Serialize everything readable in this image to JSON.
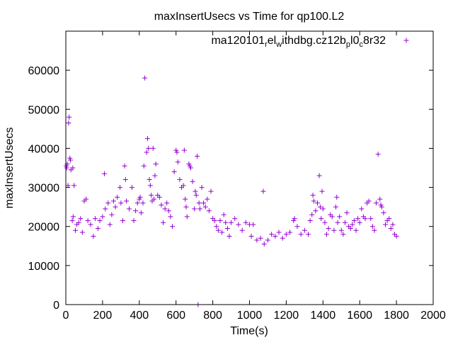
{
  "chart_data": {
    "type": "scatter",
    "title": "maxInsertUsecs vs Time for qp100.L2",
    "xlabel": "Time(s)",
    "ylabel": "maxInsertUsecs",
    "xlim": [
      0,
      2000
    ],
    "ylim": [
      0,
      70000
    ],
    "x_ticks": [
      "0",
      "200",
      "400",
      "600",
      "800",
      "1000",
      "1200",
      "1400",
      "1600",
      "1800",
      "2000"
    ],
    "y_ticks": [
      "0",
      "10000",
      "20000",
      "30000",
      "40000",
      "50000",
      "60000"
    ],
    "legend": {
      "position": "top-right",
      "marker": "+",
      "color": "#9400d3"
    },
    "series": [
      {
        "label_parts": [
          {
            "text": "ma120101",
            "sub": false
          },
          {
            "text": "r",
            "sub": true
          },
          {
            "text": "el",
            "sub": false
          },
          {
            "text": "w",
            "sub": true
          },
          {
            "text": "ithdbg.cz12b",
            "sub": false
          },
          {
            "text": "p",
            "sub": true
          },
          {
            "text": "l0",
            "sub": false
          },
          {
            "text": "c",
            "sub": true
          },
          {
            "text": "8r32",
            "sub": false
          }
        ],
        "color": "#9400d3",
        "marker": "+",
        "points": [
          [
            2,
            35500
          ],
          [
            5,
            35000
          ],
          [
            8,
            36000
          ],
          [
            12,
            30500
          ],
          [
            15,
            46500
          ],
          [
            18,
            48000
          ],
          [
            22,
            37500
          ],
          [
            25,
            37000
          ],
          [
            28,
            34500
          ],
          [
            35,
            21500
          ],
          [
            38,
            35000
          ],
          [
            40,
            22500
          ],
          [
            45,
            30500
          ],
          [
            52,
            19000
          ],
          [
            60,
            20500
          ],
          [
            70,
            21000
          ],
          [
            80,
            22000
          ],
          [
            90,
            18500
          ],
          [
            100,
            26500
          ],
          [
            110,
            27000
          ],
          [
            120,
            21500
          ],
          [
            135,
            20500
          ],
          [
            150,
            17500
          ],
          [
            160,
            22000
          ],
          [
            175,
            19500
          ],
          [
            185,
            21500
          ],
          [
            200,
            22500
          ],
          [
            210,
            33500
          ],
          [
            215,
            24500
          ],
          [
            230,
            26000
          ],
          [
            240,
            20500
          ],
          [
            250,
            23000
          ],
          [
            260,
            26500
          ],
          [
            270,
            25000
          ],
          [
            280,
            27500
          ],
          [
            295,
            30000
          ],
          [
            300,
            26000
          ],
          [
            310,
            21500
          ],
          [
            320,
            35500
          ],
          [
            325,
            32000
          ],
          [
            330,
            26500
          ],
          [
            345,
            24500
          ],
          [
            360,
            30000
          ],
          [
            370,
            21500
          ],
          [
            380,
            24000
          ],
          [
            390,
            26000
          ],
          [
            400,
            27000
          ],
          [
            405,
            27500
          ],
          [
            410,
            23500
          ],
          [
            420,
            26000
          ],
          [
            425,
            35500
          ],
          [
            430,
            58000
          ],
          [
            440,
            39000
          ],
          [
            445,
            42500
          ],
          [
            450,
            40000
          ],
          [
            455,
            32000
          ],
          [
            460,
            30500
          ],
          [
            465,
            28000
          ],
          [
            470,
            26500
          ],
          [
            475,
            40000
          ],
          [
            480,
            27000
          ],
          [
            485,
            33000
          ],
          [
            490,
            36000
          ],
          [
            500,
            28000
          ],
          [
            510,
            27500
          ],
          [
            520,
            25500
          ],
          [
            530,
            21000
          ],
          [
            540,
            24500
          ],
          [
            550,
            26000
          ],
          [
            560,
            24000
          ],
          [
            570,
            22500
          ],
          [
            580,
            20000
          ],
          [
            590,
            34000
          ],
          [
            600,
            39500
          ],
          [
            605,
            39000
          ],
          [
            610,
            36500
          ],
          [
            620,
            32000
          ],
          [
            630,
            30000
          ],
          [
            640,
            30500
          ],
          [
            645,
            39500
          ],
          [
            650,
            27000
          ],
          [
            655,
            25000
          ],
          [
            660,
            22500
          ],
          [
            670,
            36000
          ],
          [
            675,
            35500
          ],
          [
            680,
            35000
          ],
          [
            690,
            31500
          ],
          [
            700,
            24500
          ],
          [
            705,
            29000
          ],
          [
            710,
            28000
          ],
          [
            715,
            38000
          ],
          [
            720,
            0
          ],
          [
            725,
            26000
          ],
          [
            730,
            24500
          ],
          [
            740,
            30000
          ],
          [
            750,
            26000
          ],
          [
            760,
            25000
          ],
          [
            770,
            27000
          ],
          [
            780,
            24000
          ],
          [
            790,
            29000
          ],
          [
            800,
            22000
          ],
          [
            810,
            21500
          ],
          [
            820,
            20000
          ],
          [
            830,
            19000
          ],
          [
            840,
            21500
          ],
          [
            850,
            18500
          ],
          [
            860,
            23000
          ],
          [
            870,
            21000
          ],
          [
            880,
            19500
          ],
          [
            890,
            17500
          ],
          [
            900,
            21000
          ],
          [
            920,
            22000
          ],
          [
            940,
            20500
          ],
          [
            960,
            19000
          ],
          [
            980,
            21000
          ],
          [
            1000,
            20500
          ],
          [
            1010,
            17500
          ],
          [
            1020,
            20500
          ],
          [
            1040,
            16500
          ],
          [
            1060,
            17000
          ],
          [
            1075,
            29000
          ],
          [
            1080,
            15500
          ],
          [
            1100,
            16500
          ],
          [
            1120,
            18000
          ],
          [
            1140,
            17500
          ],
          [
            1160,
            18500
          ],
          [
            1180,
            17000
          ],
          [
            1200,
            18000
          ],
          [
            1220,
            18500
          ],
          [
            1240,
            21500
          ],
          [
            1245,
            22000
          ],
          [
            1260,
            20000
          ],
          [
            1280,
            18000
          ],
          [
            1300,
            19000
          ],
          [
            1320,
            18000
          ],
          [
            1330,
            21500
          ],
          [
            1340,
            23000
          ],
          [
            1345,
            28000
          ],
          [
            1350,
            26500
          ],
          [
            1360,
            24000
          ],
          [
            1370,
            26000
          ],
          [
            1380,
            33000
          ],
          [
            1385,
            25000
          ],
          [
            1390,
            22000
          ],
          [
            1395,
            29000
          ],
          [
            1400,
            24500
          ],
          [
            1410,
            21000
          ],
          [
            1420,
            18000
          ],
          [
            1430,
            19500
          ],
          [
            1440,
            23000
          ],
          [
            1450,
            22500
          ],
          [
            1460,
            19000
          ],
          [
            1470,
            25000
          ],
          [
            1475,
            27500
          ],
          [
            1480,
            21000
          ],
          [
            1490,
            22500
          ],
          [
            1500,
            19000
          ],
          [
            1510,
            18000
          ],
          [
            1520,
            21000
          ],
          [
            1530,
            23500
          ],
          [
            1540,
            20000
          ],
          [
            1550,
            19500
          ],
          [
            1560,
            20500
          ],
          [
            1570,
            21500
          ],
          [
            1580,
            19000
          ],
          [
            1590,
            22000
          ],
          [
            1600,
            21000
          ],
          [
            1610,
            24500
          ],
          [
            1620,
            22500
          ],
          [
            1630,
            22000
          ],
          [
            1640,
            26000
          ],
          [
            1650,
            26500
          ],
          [
            1660,
            22000
          ],
          [
            1670,
            20000
          ],
          [
            1680,
            19000
          ],
          [
            1690,
            26000
          ],
          [
            1700,
            38500
          ],
          [
            1710,
            27000
          ],
          [
            1715,
            25500
          ],
          [
            1720,
            25000
          ],
          [
            1730,
            23500
          ],
          [
            1740,
            20500
          ],
          [
            1750,
            21500
          ],
          [
            1760,
            22000
          ],
          [
            1770,
            19500
          ],
          [
            1780,
            20500
          ],
          [
            1790,
            18000
          ],
          [
            1800,
            17500
          ]
        ]
      }
    ]
  }
}
